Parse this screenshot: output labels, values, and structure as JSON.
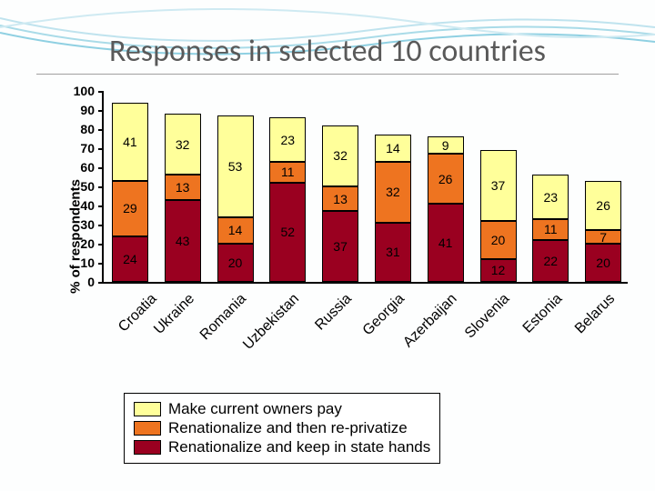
{
  "title": "Responses in selected 10 countries",
  "chart": {
    "type": "stacked-bar",
    "ylabel": "% of respondents",
    "ylim": [
      0,
      100
    ],
    "ytick_step": 10,
    "yticks": [
      0,
      10,
      20,
      30,
      40,
      50,
      60,
      70,
      80,
      90,
      100
    ],
    "background_color": "#fdfefe",
    "axis_color": "#000000",
    "bar_border_color": "#000000",
    "label_fontsize": 15,
    "tick_fontsize": 14,
    "value_fontsize": 14,
    "categories": [
      "Croatia",
      "Ukraine",
      "Romania",
      "Uzbekistan",
      "Russia",
      "Georgia",
      "Azerbaijan",
      "Slovenia",
      "Estonia",
      "Belarus"
    ],
    "series": [
      {
        "key": "keep_state",
        "label": "Renationalize and keep in state hands",
        "color": "#9a0020"
      },
      {
        "key": "reprivatize",
        "label": "Renationalize and then re-privatize",
        "color": "#ee7420"
      },
      {
        "key": "pay",
        "label": "Make current owners pay",
        "color": "#ffff9a"
      }
    ],
    "values": {
      "keep_state": [
        24,
        43,
        20,
        52,
        37,
        31,
        41,
        12,
        22,
        20
      ],
      "reprivatize": [
        29,
        13,
        14,
        11,
        13,
        32,
        26,
        20,
        11,
        7
      ],
      "pay": [
        41,
        32,
        53,
        23,
        32,
        14,
        9,
        37,
        23,
        26
      ]
    }
  },
  "legend": {
    "items": [
      {
        "color": "#ffff9a",
        "label": "Make current owners pay"
      },
      {
        "color": "#ee7420",
        "label": "Renationalize and then re-privatize"
      },
      {
        "color": "#9a0020",
        "label": "Renationalize and keep in state hands"
      }
    ]
  }
}
